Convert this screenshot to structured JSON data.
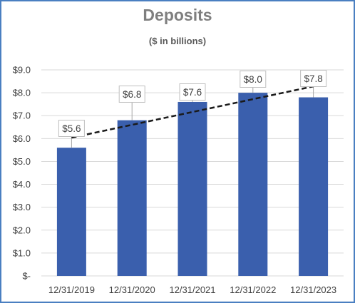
{
  "chart_data": {
    "type": "bar",
    "title": "Deposits",
    "subtitle": "($ in billions)",
    "categories": [
      "12/31/2019",
      "12/31/2020",
      "12/31/2021",
      "12/31/2022",
      "12/31/2023"
    ],
    "values": [
      5.6,
      6.8,
      7.6,
      8.0,
      7.8
    ],
    "data_labels": [
      "$5.6",
      "$6.8",
      "$7.6",
      "$8.0",
      "$7.8"
    ],
    "y_ticks": [
      0,
      1,
      2,
      3,
      4,
      5,
      6,
      7,
      8,
      9
    ],
    "y_tick_labels": [
      "$-",
      "$1.0",
      "$2.0",
      "$3.0",
      "$4.0",
      "$5.0",
      "$6.0",
      "$7.0",
      "$8.0",
      "$9.0"
    ],
    "ylim": [
      0,
      9
    ],
    "grid": true,
    "trendline": {
      "type": "linear",
      "style": "dashed"
    },
    "colors": {
      "bar": "#3a5fad",
      "trendline": "#1a1a1a",
      "grid": "#d9d9d9",
      "border": "#4a7fc1",
      "label_box": "#bfbfbf"
    }
  }
}
